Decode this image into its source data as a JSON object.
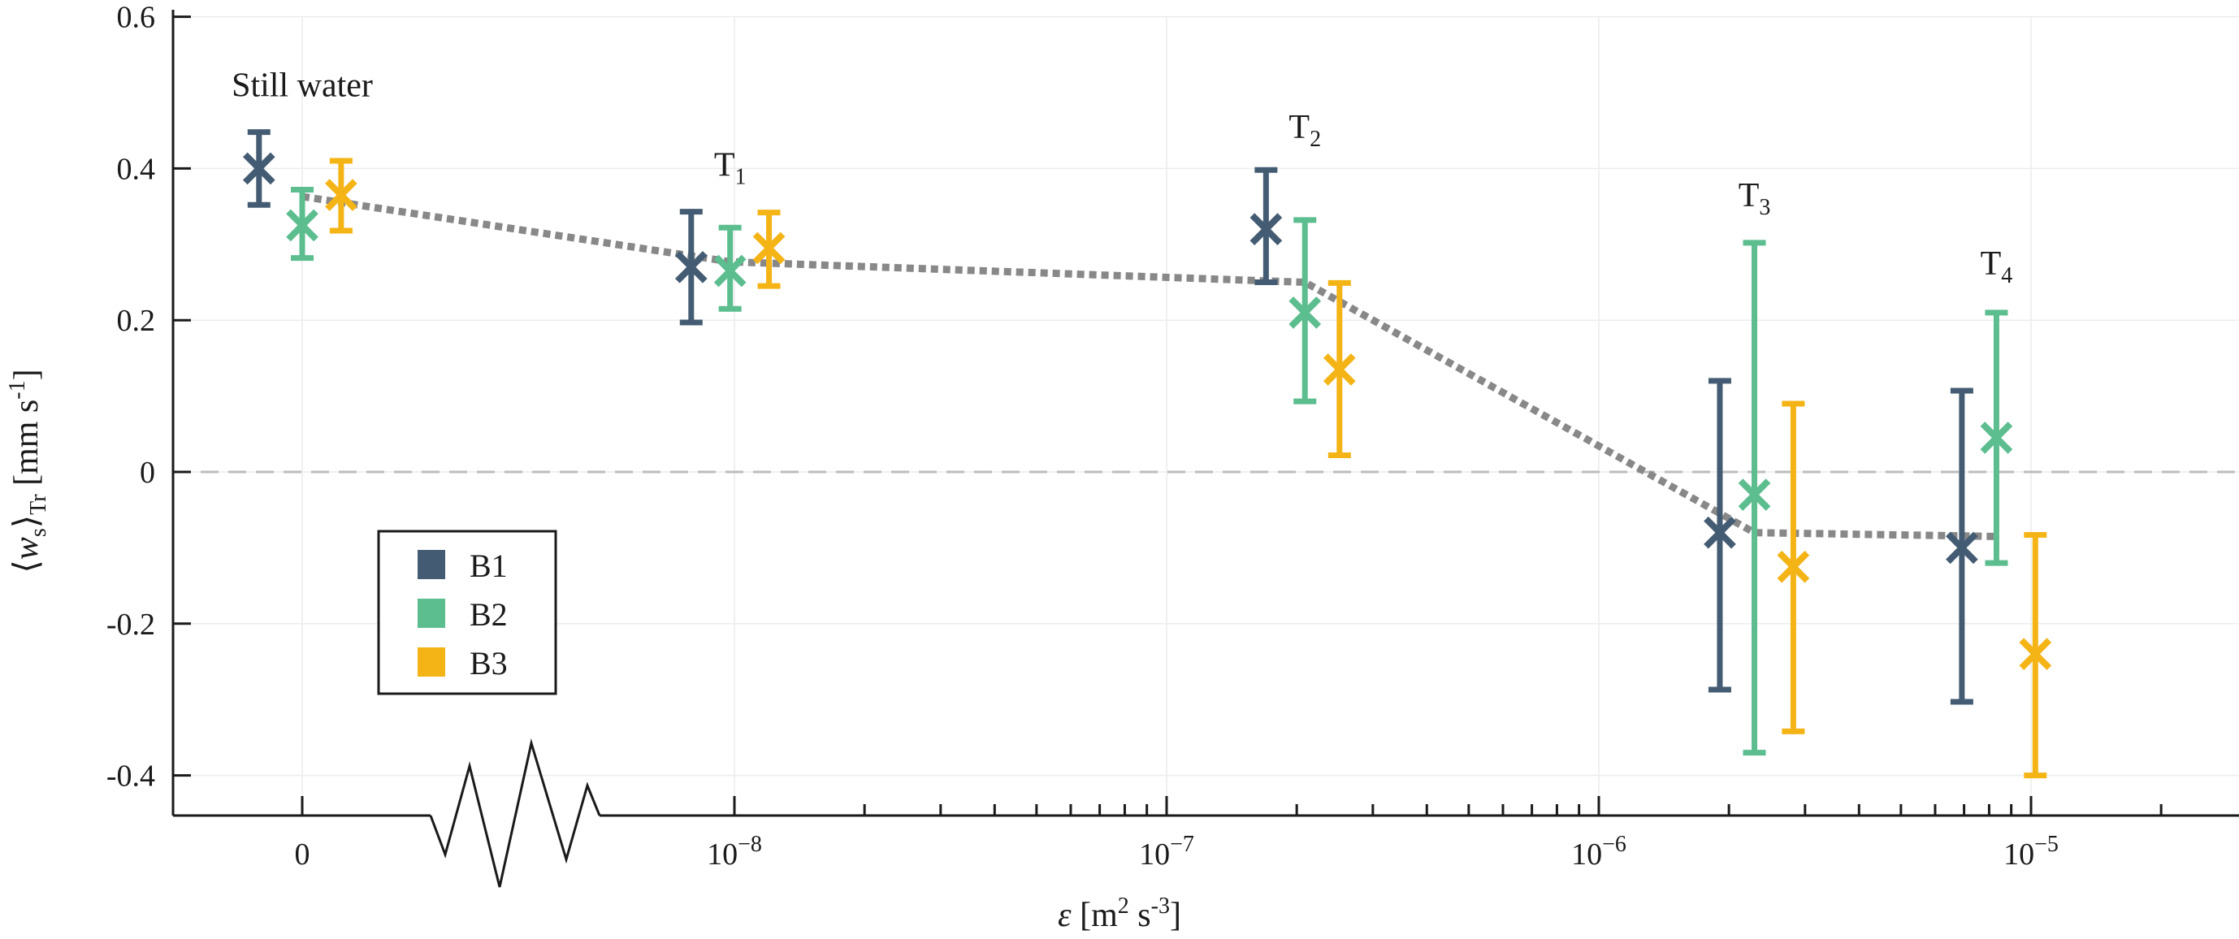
{
  "chart_data": {
    "type": "scatter",
    "title": "",
    "xlabel": {
      "symbol": "ε",
      "unit_open": " [m",
      "unit_exp1": "2",
      "unit_mid": " s",
      "unit_exp2": "-3",
      "unit_close": "]"
    },
    "ylabel": {
      "open": "⟨",
      "symbol": "w",
      "sub1": "s",
      "close": "⟩",
      "sub2": "Tr",
      "unit_open": " [mm s",
      "unit_exp": "-1",
      "unit_close": "]"
    },
    "ylim": [
      -0.45,
      0.6
    ],
    "yticks": [
      0.6,
      0.4,
      0.2,
      0,
      -0.2,
      -0.4
    ],
    "ytick_labels": [
      "0.6",
      "0.4",
      "0.2",
      "0",
      "-0.2",
      "-0.4"
    ],
    "xlim_log10": [
      -9.3,
      -4.3
    ],
    "xticks": [
      {
        "label": "0",
        "base": "",
        "exp": "",
        "log10": -9.0
      },
      {
        "label": "",
        "base": "10",
        "exp": "−8",
        "log10": -8
      },
      {
        "label": "",
        "base": "10",
        "exp": "−7",
        "log10": -7
      },
      {
        "label": "",
        "base": "10",
        "exp": "−6",
        "log10": -6
      },
      {
        "label": "",
        "base": "10",
        "exp": "−5",
        "log10": -5
      }
    ],
    "zero_line": 0,
    "axis_break": true,
    "series": [
      {
        "name": "B1",
        "color": "#445c73",
        "points": [
          {
            "x_log10": -9.1,
            "y": 0.4,
            "lo": 0.352,
            "hi": 0.448
          },
          {
            "x_log10": -8.1,
            "y": 0.27,
            "lo": 0.197,
            "hi": 0.343
          },
          {
            "x_log10": -6.77,
            "y": 0.32,
            "lo": 0.25,
            "hi": 0.398
          },
          {
            "x_log10": -5.72,
            "y": -0.08,
            "lo": -0.287,
            "hi": 0.12
          },
          {
            "x_log10": -5.16,
            "y": -0.1,
            "lo": -0.303,
            "hi": 0.107
          }
        ]
      },
      {
        "name": "B2",
        "color": "#5cbd8f",
        "points": [
          {
            "x_log10": -9.0,
            "y": 0.325,
            "lo": 0.282,
            "hi": 0.372
          },
          {
            "x_log10": -8.01,
            "y": 0.265,
            "lo": 0.215,
            "hi": 0.322
          },
          {
            "x_log10": -6.68,
            "y": 0.21,
            "lo": 0.093,
            "hi": 0.332
          },
          {
            "x_log10": -5.64,
            "y": -0.03,
            "lo": -0.37,
            "hi": 0.302
          },
          {
            "x_log10": -5.08,
            "y": 0.045,
            "lo": -0.12,
            "hi": 0.21
          }
        ]
      },
      {
        "name": "B3",
        "color": "#f5b416",
        "points": [
          {
            "x_log10": -8.91,
            "y": 0.365,
            "lo": 0.318,
            "hi": 0.41
          },
          {
            "x_log10": -7.92,
            "y": 0.295,
            "lo": 0.245,
            "hi": 0.342
          },
          {
            "x_log10": -6.6,
            "y": 0.135,
            "lo": 0.022,
            "hi": 0.249
          },
          {
            "x_log10": -5.55,
            "y": -0.125,
            "lo": -0.342,
            "hi": 0.09
          },
          {
            "x_log10": -4.99,
            "y": -0.24,
            "lo": -0.4,
            "hi": -0.083
          }
        ]
      }
    ],
    "mean_line": {
      "color": "#888888",
      "points": [
        {
          "x_log10": -9.0,
          "y": 0.363
        },
        {
          "x_log10": -8.01,
          "y": 0.277
        },
        {
          "x_log10": -6.68,
          "y": 0.25
        },
        {
          "x_log10": -5.64,
          "y": -0.08
        },
        {
          "x_log10": -5.08,
          "y": -0.085
        }
      ]
    },
    "annotations": [
      {
        "text": "Still water",
        "sub": "",
        "x_log10": -9.0,
        "y": 0.495
      },
      {
        "text": "T",
        "sub": "1",
        "x_log10": -8.01,
        "y": 0.39
      },
      {
        "text": "T",
        "sub": "2",
        "x_log10": -6.68,
        "y": 0.44
      },
      {
        "text": "T",
        "sub": "3",
        "x_log10": -5.64,
        "y": 0.35
      },
      {
        "text": "T",
        "sub": "4",
        "x_log10": -5.08,
        "y": 0.26
      }
    ],
    "legend": {
      "position": "bottom-left",
      "entries": [
        "B1",
        "B2",
        "B3"
      ]
    }
  }
}
